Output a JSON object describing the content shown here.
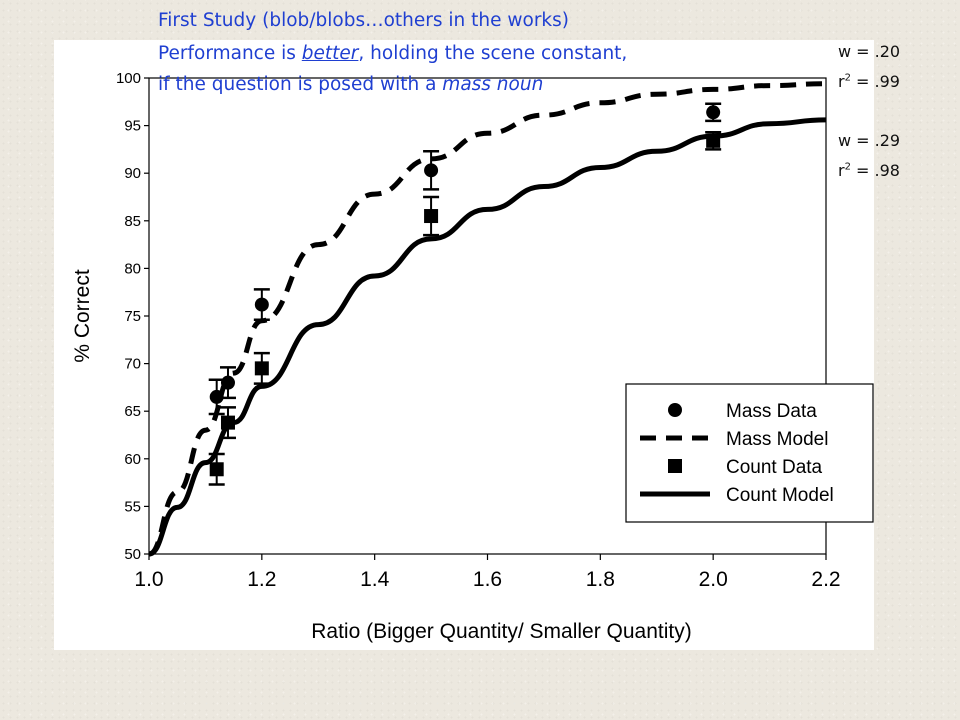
{
  "headline": {
    "line1": "First Study (blob/blobs…others in the works)",
    "line2_pre": "Performance is ",
    "line2_em": "better",
    "line2_post": ", holding the scene constant,",
    "line3_pre": "if the question is posed with a ",
    "line3_em": "mass noun"
  },
  "fits": {
    "mass": {
      "w_label": "w = .20",
      "r2_prefix": "r",
      "r2_value": " = .99"
    },
    "count": {
      "w_label": "w = .29",
      "r2_prefix": "r",
      "r2_value": " = .98"
    },
    "r2_exponent": "2"
  },
  "chart_data": {
    "type": "line",
    "xlabel": "Ratio (Bigger Quantity/ Smaller Quantity)",
    "ylabel": "% Correct",
    "xlim": [
      1.0,
      2.2
    ],
    "ylim": [
      50,
      100
    ],
    "x_ticks": [
      1.0,
      1.2,
      1.4,
      1.6,
      1.8,
      2.0,
      2.2
    ],
    "x_tick_labels": [
      "1.0",
      "1.2",
      "1.4",
      "1.6",
      "1.8",
      "2.0",
      "2.2"
    ],
    "y_ticks": [
      50,
      55,
      60,
      65,
      70,
      75,
      80,
      85,
      90,
      95,
      100
    ],
    "y_tick_labels": [
      "50",
      "55",
      "60",
      "65",
      "70",
      "75",
      "80",
      "85",
      "90",
      "95",
      "100"
    ],
    "grid": false,
    "legend_position": "bottom-right",
    "series": [
      {
        "name": "Mass Data",
        "kind": "points",
        "marker": "circle",
        "x": [
          1.12,
          1.14,
          1.2,
          1.5,
          2.0
        ],
        "y": [
          66.5,
          68.0,
          76.2,
          90.3,
          96.4
        ],
        "err": [
          1.8,
          1.6,
          1.6,
          2.0,
          0.9
        ]
      },
      {
        "name": "Mass Model",
        "kind": "line",
        "style": "dashed",
        "x": [
          1.0,
          1.05,
          1.1,
          1.15,
          1.2,
          1.3,
          1.4,
          1.5,
          1.6,
          1.7,
          1.8,
          1.9,
          2.0,
          2.1,
          2.2
        ],
        "y": [
          50.0,
          56.5,
          63.0,
          69.0,
          74.5,
          82.5,
          87.8,
          91.5,
          94.2,
          96.1,
          97.4,
          98.3,
          98.8,
          99.2,
          99.4
        ]
      },
      {
        "name": "Count Data",
        "kind": "points",
        "marker": "square",
        "x": [
          1.12,
          1.14,
          1.2,
          1.5,
          2.0
        ],
        "y": [
          58.9,
          63.8,
          69.5,
          85.5,
          93.4
        ],
        "err": [
          1.6,
          1.6,
          1.6,
          2.0,
          0.9
        ]
      },
      {
        "name": "Count Model",
        "kind": "line",
        "style": "solid",
        "x": [
          1.0,
          1.05,
          1.1,
          1.15,
          1.2,
          1.3,
          1.4,
          1.5,
          1.6,
          1.7,
          1.8,
          1.9,
          2.0,
          2.1,
          2.2
        ],
        "y": [
          50.0,
          54.9,
          59.6,
          63.8,
          67.6,
          74.1,
          79.2,
          83.1,
          86.2,
          88.6,
          90.6,
          92.3,
          93.9,
          95.2,
          95.6
        ]
      }
    ]
  }
}
